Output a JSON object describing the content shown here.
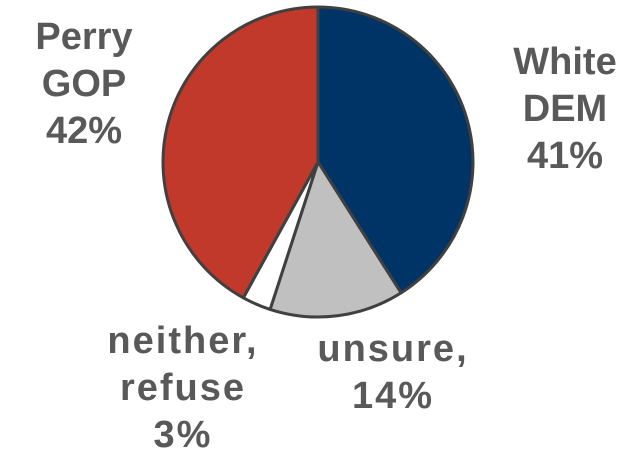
{
  "chart_data": {
    "type": "pie",
    "title": "",
    "slices": [
      {
        "name": "White DEM",
        "value": 41,
        "color": "#003366",
        "label_lines": [
          "White",
          "DEM",
          "41%"
        ]
      },
      {
        "name": "unsure",
        "value": 14,
        "color": "#c0c0c0",
        "label_lines": [
          "unsure,",
          "14%"
        ]
      },
      {
        "name": "neither, refuse",
        "value": 3,
        "color": "#ffffff",
        "label_lines": [
          "neither,",
          "refuse",
          "3%"
        ]
      },
      {
        "name": "Perry GOP",
        "value": 42,
        "color": "#c0392b",
        "label_lines": [
          "Perry",
          "GOP",
          "42%"
        ]
      }
    ],
    "start_angle_deg": 0,
    "direction": "clockwise",
    "legend": "none",
    "slice_outline_color": "#404040",
    "label_color": "#595959"
  }
}
